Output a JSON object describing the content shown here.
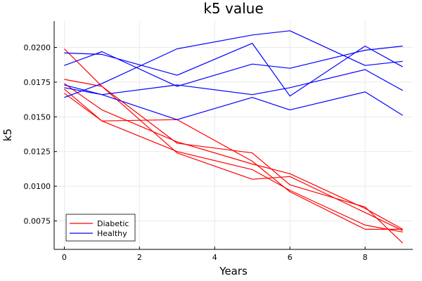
{
  "chart_data": {
    "type": "line",
    "title": "k5 value",
    "xlabel": "Years",
    "ylabel": "k5",
    "xlim": [
      -0.27,
      9.27
    ],
    "ylim": [
      0.00545,
      0.0219
    ],
    "xticks": [
      0,
      2,
      4,
      6,
      8
    ],
    "xtick_labels": [
      "0",
      "2",
      "4",
      "6",
      "8"
    ],
    "yticks": [
      0.0075,
      0.01,
      0.0125,
      0.015,
      0.0175,
      0.02
    ],
    "ytick_labels": [
      "0.0075",
      "0.0100",
      "0.0125",
      "0.0150",
      "0.0175",
      "0.0200"
    ],
    "grid": true,
    "legend": {
      "placement": "bottom-left",
      "entries": [
        {
          "label": "Diabetic",
          "color": "#ff0000"
        },
        {
          "label": "Healthy",
          "color": "#0000ff"
        }
      ]
    },
    "series": [
      {
        "group": "Diabetic",
        "color": "#ff0000",
        "x": [
          0,
          1,
          3,
          5,
          6,
          8,
          9
        ],
        "y": [
          0.0199,
          0.0172,
          0.0131,
          0.0124,
          0.0101,
          0.0085,
          0.0059
        ]
      },
      {
        "group": "Diabetic",
        "color": "#ff0000",
        "x": [
          0,
          1,
          3,
          5,
          6,
          8,
          9
        ],
        "y": [
          0.0177,
          0.0172,
          0.0124,
          0.0105,
          0.0107,
          0.0081,
          0.0068
        ]
      },
      {
        "group": "Diabetic",
        "color": "#ff0000",
        "x": [
          0,
          1,
          3,
          5,
          6,
          8,
          9
        ],
        "y": [
          0.0174,
          0.0155,
          0.0132,
          0.0116,
          0.0109,
          0.0084,
          0.0069
        ]
      },
      {
        "group": "Diabetic",
        "color": "#ff0000",
        "x": [
          0,
          1,
          3,
          5,
          6,
          8,
          9
        ],
        "y": [
          0.017,
          0.0147,
          0.0125,
          0.0112,
          0.0097,
          0.0072,
          0.0067
        ]
      },
      {
        "group": "Diabetic",
        "color": "#ff0000",
        "x": [
          0,
          1,
          3,
          5,
          6,
          8,
          9
        ],
        "y": [
          0.0167,
          0.0147,
          0.0148,
          0.0118,
          0.0096,
          0.0069,
          0.0069
        ]
      },
      {
        "group": "Healthy",
        "color": "#0000ff",
        "x": [
          0,
          1,
          3,
          5,
          6,
          8,
          9
        ],
        "y": [
          0.0196,
          0.0195,
          0.018,
          0.0203,
          0.0165,
          0.0201,
          0.0186
        ]
      },
      {
        "group": "Healthy",
        "color": "#0000ff",
        "x": [
          0,
          1,
          3,
          5,
          6,
          8,
          9
        ],
        "y": [
          0.0187,
          0.0197,
          0.0172,
          0.0188,
          0.0185,
          0.0198,
          0.0201
        ]
      },
      {
        "group": "Healthy",
        "color": "#0000ff",
        "x": [
          0,
          1,
          3,
          5,
          6,
          8,
          9
        ],
        "y": [
          0.0173,
          0.0166,
          0.0148,
          0.0164,
          0.0155,
          0.0168,
          0.0151
        ]
      },
      {
        "group": "Healthy",
        "color": "#0000ff",
        "x": [
          0,
          1,
          3,
          5,
          6,
          8,
          9
        ],
        "y": [
          0.0171,
          0.0166,
          0.0173,
          0.0166,
          0.0171,
          0.0184,
          0.0169
        ]
      },
      {
        "group": "Healthy",
        "color": "#0000ff",
        "x": [
          0,
          1,
          3,
          5,
          6,
          8,
          9
        ],
        "y": [
          0.0164,
          0.0174,
          0.0199,
          0.0209,
          0.0212,
          0.0187,
          0.019
        ]
      }
    ]
  }
}
